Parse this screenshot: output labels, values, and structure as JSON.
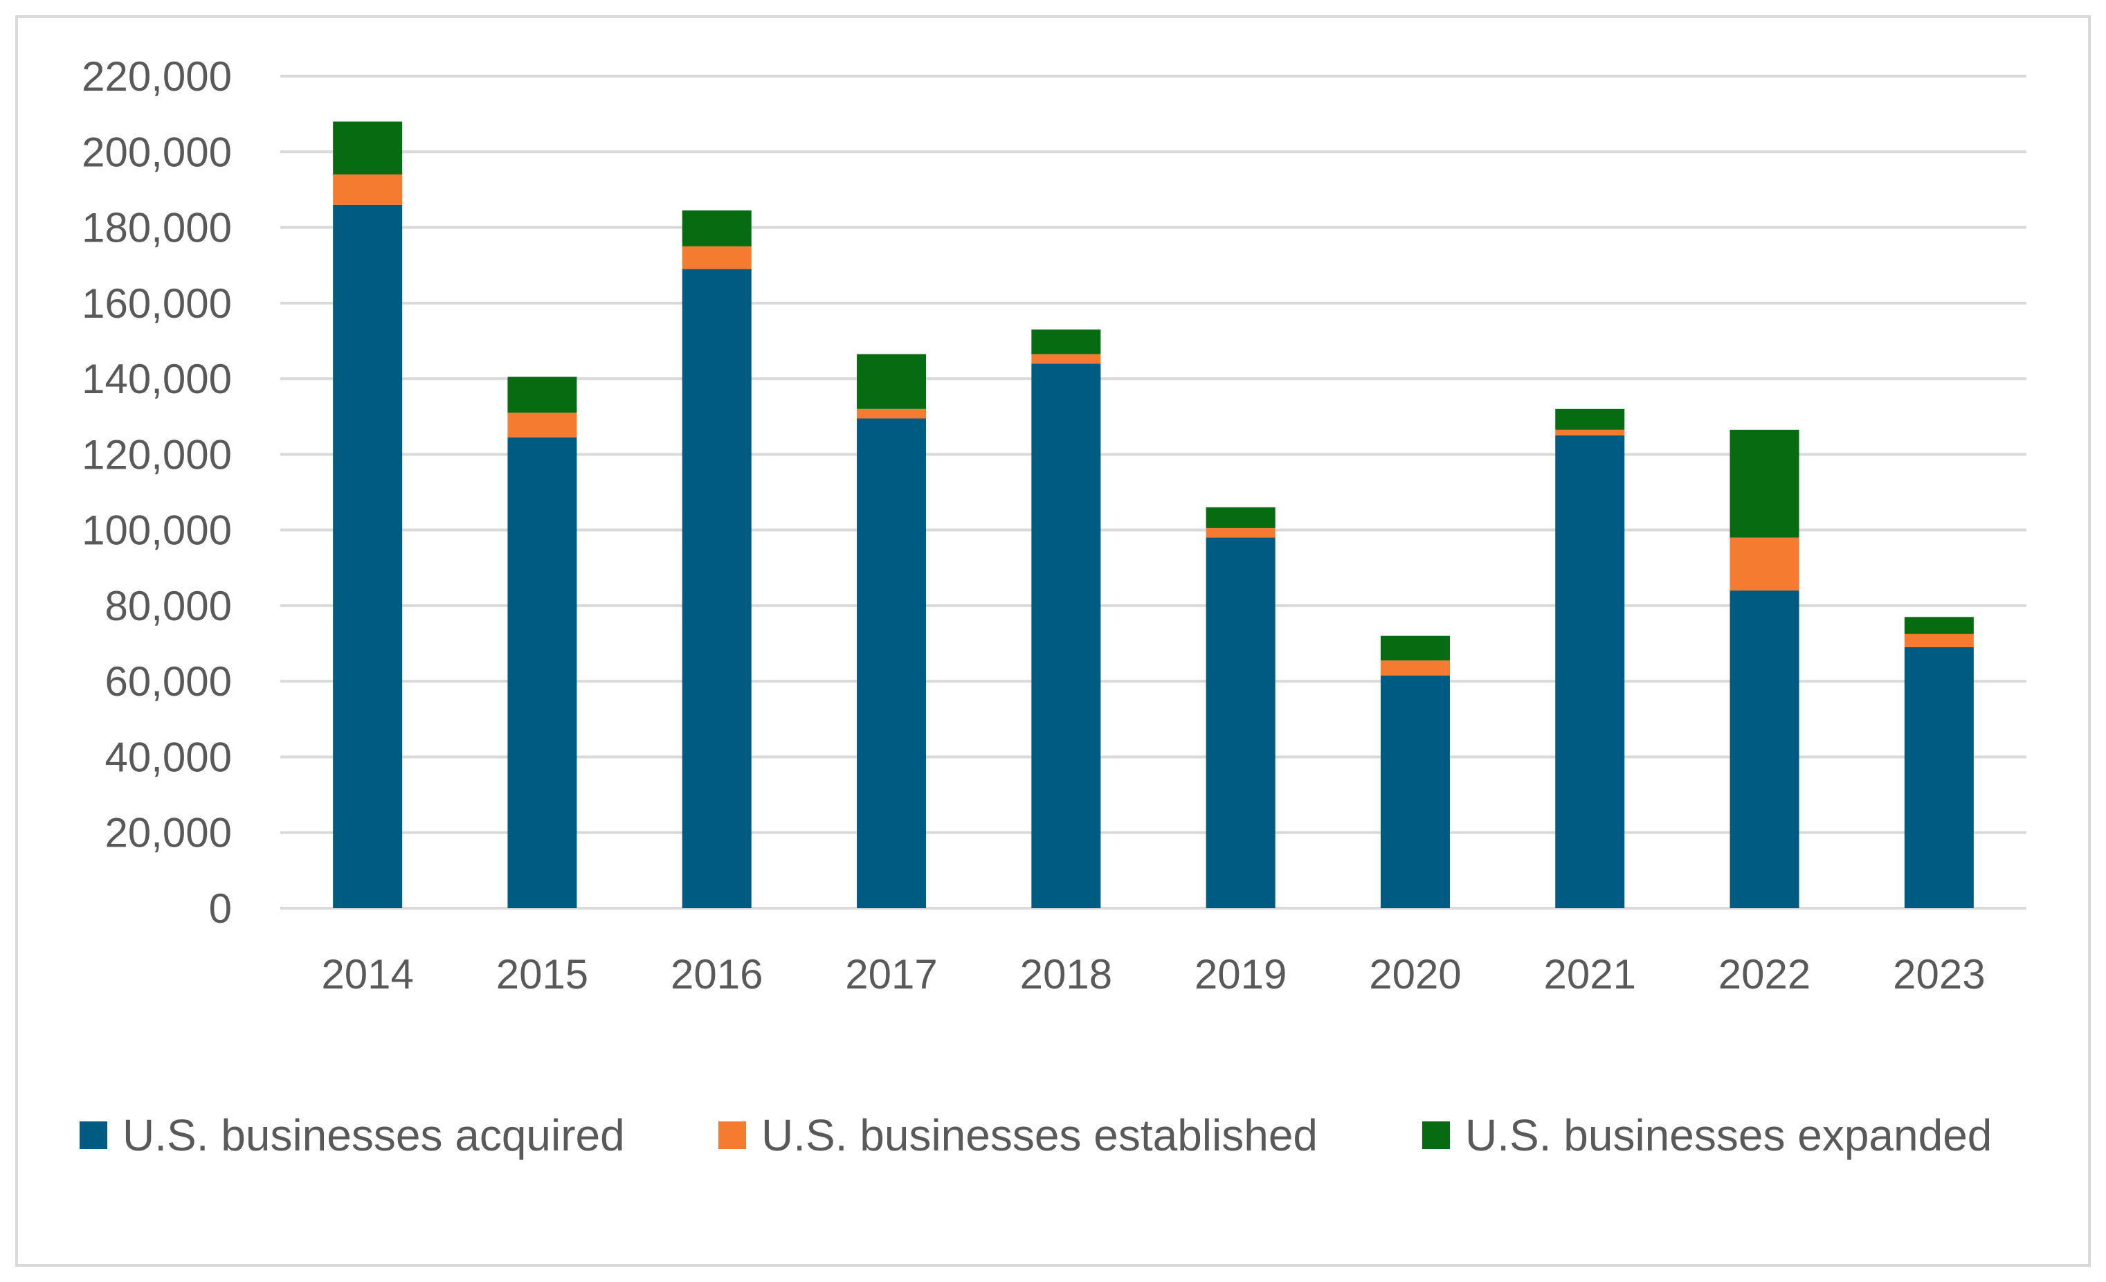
{
  "chart_data": {
    "type": "bar",
    "stacked": true,
    "title": "",
    "xlabel": "",
    "ylabel": "",
    "ylim": [
      0,
      220000
    ],
    "y_ticks": [
      0,
      20000,
      40000,
      60000,
      80000,
      100000,
      120000,
      140000,
      160000,
      180000,
      200000,
      220000
    ],
    "y_tick_labels": [
      "0",
      "20,000",
      "40,000",
      "60,000",
      "80,000",
      "100,000",
      "120,000",
      "140,000",
      "160,000",
      "180,000",
      "200,000",
      "220,000"
    ],
    "grid": true,
    "legend_position": "bottom",
    "categories": [
      "2014",
      "2015",
      "2016",
      "2017",
      "2018",
      "2019",
      "2020",
      "2021",
      "2022",
      "2023"
    ],
    "series": [
      {
        "name": "U.S. businesses acquired",
        "color": "#005b82",
        "values": [
          186000,
          124500,
          169000,
          129500,
          144000,
          98000,
          61500,
          125000,
          84000,
          69000
        ]
      },
      {
        "name": "U.S. businesses established",
        "color": "#f47b30",
        "values": [
          8000,
          6500,
          6000,
          2500,
          2500,
          2500,
          4000,
          1500,
          14000,
          3500
        ]
      },
      {
        "name": "U.S. businesses expanded",
        "color": "#076b12",
        "values": [
          14000,
          9500,
          9500,
          14500,
          6500,
          5500,
          6500,
          5500,
          28500,
          4500
        ]
      }
    ]
  }
}
